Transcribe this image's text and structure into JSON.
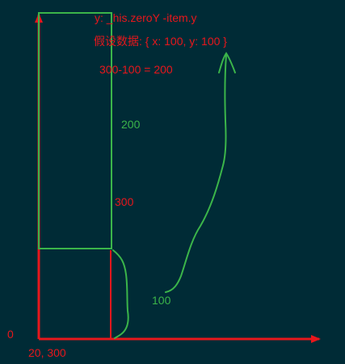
{
  "annotations": {
    "formula": "y: _his.zeroY -item.y",
    "assumption": "假设数据: { x: 100, y: 100 }",
    "calculation": "300-100 = 200",
    "height_200": "200",
    "height_300": "300",
    "width_100": "100",
    "origin_zero": "0",
    "zero_point": "20, 300"
  },
  "colors": {
    "background": "#002b36",
    "red": "#e8171c",
    "green": "#3bb54a"
  }
}
